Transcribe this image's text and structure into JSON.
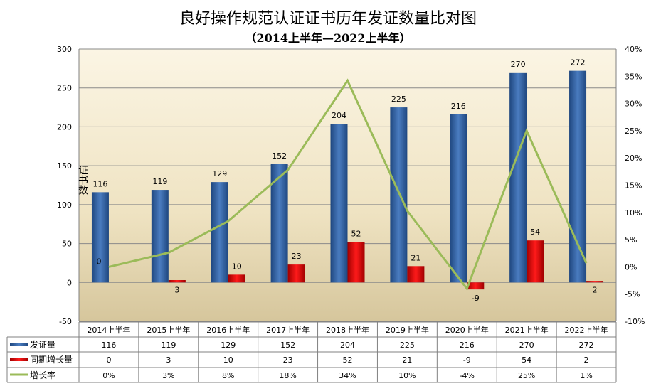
{
  "chart_data": {
    "type": "bar+line",
    "title": "良好操作规范认证证书历年发证数量比对图",
    "subtitle": "（2014上半年—2022上半年）",
    "ylabel": "证书数",
    "categories": [
      "2014上半年",
      "2015上半年",
      "2016上半年",
      "2017上半年",
      "2018上半年",
      "2019上半年",
      "2020上半年",
      "2021上半年",
      "2022上半年"
    ],
    "series": [
      {
        "name": "发证量",
        "type": "bar",
        "axis": "left",
        "color": "#2f5c9a",
        "values": [
          116,
          119,
          129,
          152,
          204,
          225,
          216,
          270,
          272
        ],
        "labels": [
          "116",
          "119",
          "129",
          "152",
          "204",
          "225",
          "216",
          "270",
          "272"
        ]
      },
      {
        "name": "同期增长量",
        "type": "bar",
        "axis": "left",
        "color": "#e00000",
        "values": [
          0,
          3,
          10,
          23,
          52,
          21,
          -9,
          54,
          2
        ],
        "labels": [
          "0",
          "3",
          "10",
          "23",
          "52",
          "21",
          "-9",
          "54",
          "2"
        ]
      },
      {
        "name": "增长率",
        "type": "line",
        "axis": "right",
        "color": "#9bbb59",
        "values": [
          0,
          2.6,
          8.4,
          17.8,
          34.2,
          10.3,
          -4.0,
          25.0,
          0.7
        ],
        "labels": [
          "0%",
          "3%",
          "8%",
          "18%",
          "34%",
          "10%",
          "-4%",
          "25%",
          "1%"
        ]
      }
    ],
    "ylim": [
      -50,
      300
    ],
    "yticks": [
      "-50",
      "0",
      "50",
      "100",
      "150",
      "200",
      "250",
      "300"
    ],
    "y2lim": [
      -10,
      40
    ],
    "y2ticks": [
      "-10%",
      "-5%",
      "0%",
      "5%",
      "10%",
      "15%",
      "20%",
      "25%",
      "30%",
      "35%",
      "40%"
    ],
    "grid": true,
    "legend": "data-table"
  }
}
